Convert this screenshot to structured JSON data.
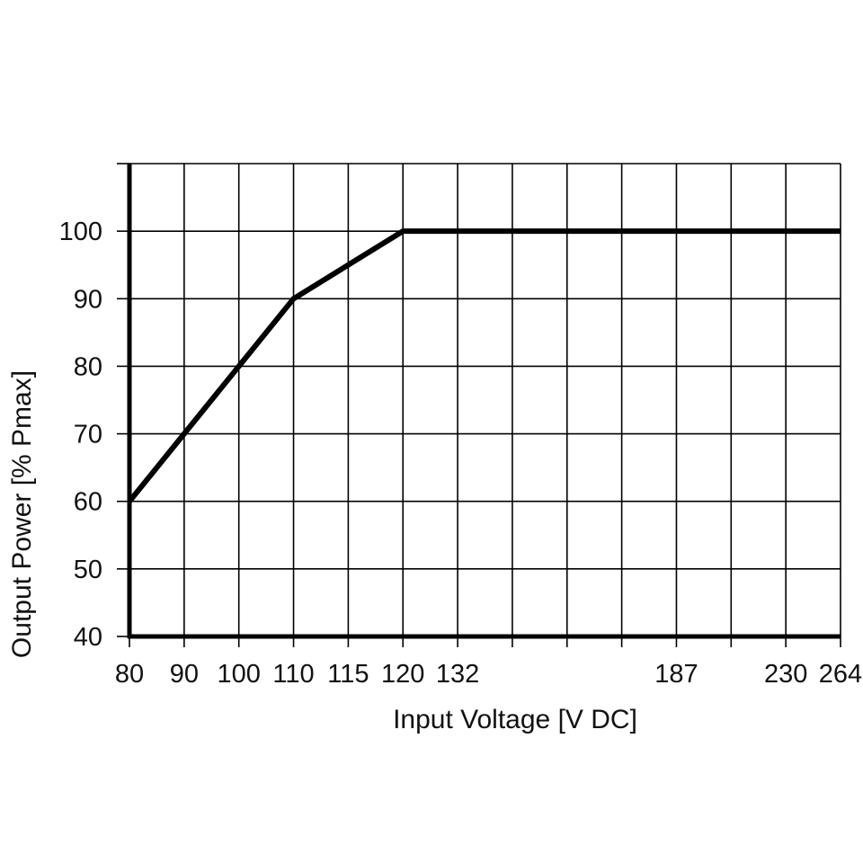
{
  "chart_data": {
    "type": "line",
    "title": "",
    "xlabel": "Input Voltage [V DC]",
    "ylabel": "Output Power [% Pmax]",
    "x_ticks": [
      "80",
      "90",
      "100",
      "110",
      "115",
      "120",
      "132",
      "187",
      "230",
      "264"
    ],
    "x_tick_grid_index": [
      0,
      1,
      2,
      3,
      4,
      5,
      6,
      10,
      12,
      13
    ],
    "x_grid_divisions": 13,
    "ylim": [
      40,
      110
    ],
    "y_ticks": [
      40,
      50,
      60,
      70,
      80,
      90,
      100
    ],
    "grid": true,
    "series": [
      {
        "x": [
          80,
          90,
          100,
          110,
          115,
          120,
          132,
          187,
          230,
          264
        ],
        "y": [
          60,
          70,
          80,
          90,
          95,
          100,
          100,
          100,
          100,
          100
        ]
      }
    ]
  }
}
